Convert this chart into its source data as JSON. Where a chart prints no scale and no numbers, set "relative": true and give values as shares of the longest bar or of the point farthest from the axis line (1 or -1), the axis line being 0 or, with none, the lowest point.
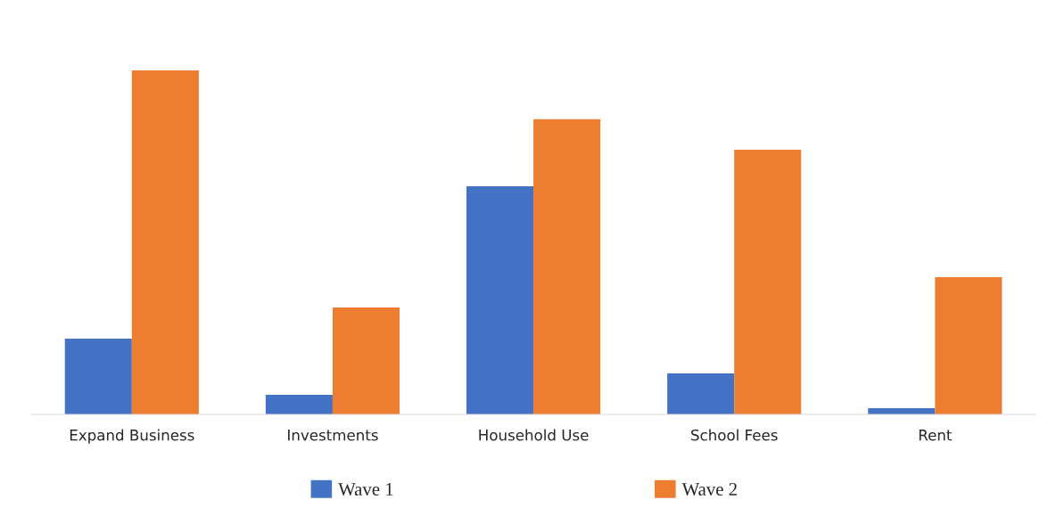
{
  "chart_data": {
    "type": "bar",
    "relative": true,
    "categories": [
      "Expand Business",
      "Investments",
      "Household Use",
      "School Fees",
      "Rent"
    ],
    "series": [
      {
        "name": "Wave 1",
        "color": "#4472c4",
        "values": [
          0.22,
          0.057,
          0.663,
          0.119,
          0.018
        ]
      },
      {
        "name": "Wave 2",
        "color": "#ed7d31",
        "values": [
          1,
          0.311,
          0.858,
          0.769,
          0.399
        ]
      }
    ],
    "grid": false,
    "legend": "bottom"
  }
}
